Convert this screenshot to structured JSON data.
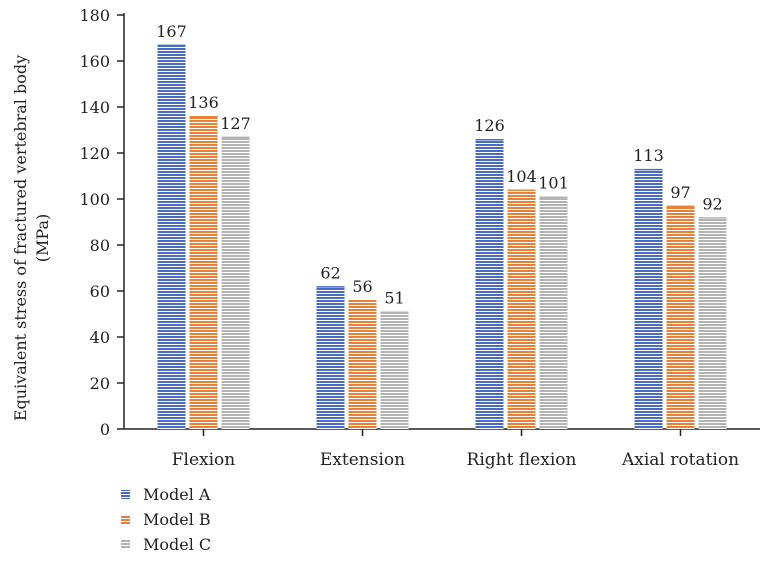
{
  "chart_data": {
    "type": "bar",
    "title": "",
    "xlabel": "",
    "ylabel": {
      "line1": "Equivalent stress of fractured vertebral body",
      "line2": "(MPa)"
    },
    "ylim": [
      0,
      180
    ],
    "yticks": [
      0,
      20,
      40,
      60,
      80,
      100,
      120,
      140,
      160,
      180
    ],
    "categories": [
      "Flexion",
      "Extension",
      "Right flexion",
      "Axial rotation"
    ],
    "series": [
      {
        "name": "Model A",
        "values": [
          167,
          62,
          126,
          113
        ],
        "color": "#4a6bbf"
      },
      {
        "name": "Model B",
        "values": [
          136,
          56,
          104,
          97
        ],
        "color": "#e8803a"
      },
      {
        "name": "Model C",
        "values": [
          127,
          51,
          101,
          92
        ],
        "color": "#b3b3b3"
      }
    ],
    "data_labels": true,
    "legend": "bottom-left",
    "grid": false,
    "bar_pattern": "horizontal-stripes"
  }
}
